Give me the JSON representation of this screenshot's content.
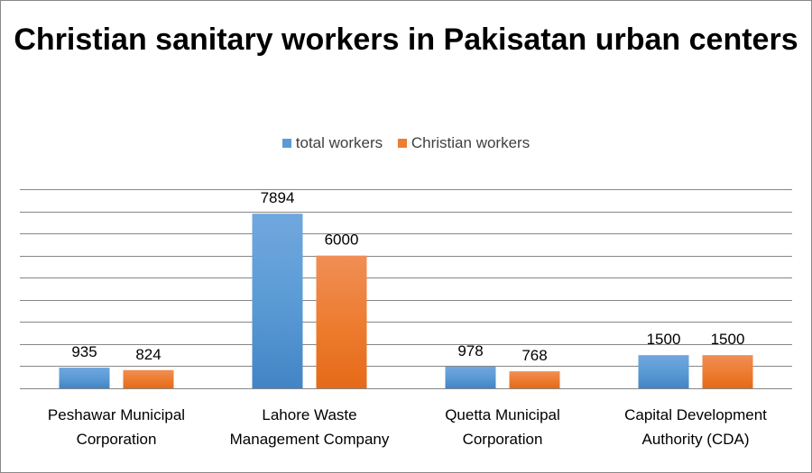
{
  "chart_data": {
    "type": "bar",
    "title": "Christian sanitary workers in Pakisatan urban centers",
    "categories": [
      [
        "Peshawar Municipal",
        "Corporation"
      ],
      [
        "Lahore Waste",
        "Management Company"
      ],
      [
        "Quetta Municipal",
        "Corporation"
      ],
      [
        "Capital Development",
        "Authority (CDA)"
      ]
    ],
    "series": [
      {
        "name": "total workers",
        "values": [
          935,
          7894,
          978,
          1500
        ],
        "color": "#5B9BD5",
        "color_dark": "#4384C6",
        "color_light": "#71A7DE"
      },
      {
        "name": "Christian workers",
        "values": [
          824,
          6000,
          768,
          1500
        ],
        "color": "#ED7D31",
        "color_dark": "#E56A18",
        "color_light": "#F08E56"
      }
    ],
    "ylim": [
      0,
      9000
    ],
    "ytick_step": 1000,
    "grid": true,
    "show_y_labels": false,
    "legend": "top-center",
    "xlabel": "",
    "ylabel": ""
  }
}
